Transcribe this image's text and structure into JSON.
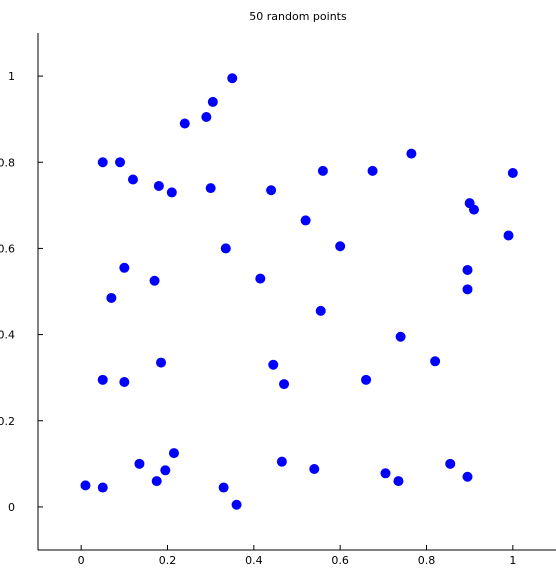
{
  "chart_data": {
    "type": "scatter",
    "title": "50 random points",
    "xlabel": "",
    "ylabel": "",
    "xlim": [
      -0.1,
      1.1
    ],
    "ylim": [
      -0.1,
      1.1
    ],
    "xticks": [
      "0",
      "0.2",
      "0.4",
      "0.6",
      "0.8",
      "1"
    ],
    "yticks": [
      "0",
      "0.2",
      "0.4",
      "0.6",
      "0.8",
      "1"
    ],
    "grid": false,
    "marker_color": "#0000ff",
    "series": [
      {
        "points": [
          [
            0.01,
            0.05
          ],
          [
            0.05,
            0.045
          ],
          [
            0.05,
            0.295
          ],
          [
            0.05,
            0.8
          ],
          [
            0.07,
            0.485
          ],
          [
            0.09,
            0.8
          ],
          [
            0.1,
            0.29
          ],
          [
            0.1,
            0.555
          ],
          [
            0.12,
            0.76
          ],
          [
            0.135,
            0.1
          ],
          [
            0.17,
            0.525
          ],
          [
            0.175,
            0.06
          ],
          [
            0.18,
            0.745
          ],
          [
            0.185,
            0.335
          ],
          [
            0.195,
            0.085
          ],
          [
            0.21,
            0.73
          ],
          [
            0.215,
            0.125
          ],
          [
            0.24,
            0.89
          ],
          [
            0.29,
            0.905
          ],
          [
            0.3,
            0.74
          ],
          [
            0.305,
            0.94
          ],
          [
            0.33,
            0.045
          ],
          [
            0.335,
            0.6
          ],
          [
            0.35,
            0.995
          ],
          [
            0.36,
            0.005
          ],
          [
            0.415,
            0.53
          ],
          [
            0.44,
            0.735
          ],
          [
            0.445,
            0.33
          ],
          [
            0.465,
            0.105
          ],
          [
            0.47,
            0.285
          ],
          [
            0.52,
            0.665
          ],
          [
            0.54,
            0.088
          ],
          [
            0.555,
            0.455
          ],
          [
            0.56,
            0.78
          ],
          [
            0.6,
            0.605
          ],
          [
            0.66,
            0.295
          ],
          [
            0.675,
            0.78
          ],
          [
            0.705,
            0.078
          ],
          [
            0.735,
            0.06
          ],
          [
            0.74,
            0.395
          ],
          [
            0.765,
            0.82
          ],
          [
            0.82,
            0.338
          ],
          [
            0.855,
            0.1
          ],
          [
            0.895,
            0.55
          ],
          [
            0.895,
            0.505
          ],
          [
            0.895,
            0.07
          ],
          [
            0.9,
            0.705
          ],
          [
            0.91,
            0.69
          ],
          [
            0.99,
            0.63
          ],
          [
            1.0,
            0.775
          ]
        ]
      }
    ]
  }
}
